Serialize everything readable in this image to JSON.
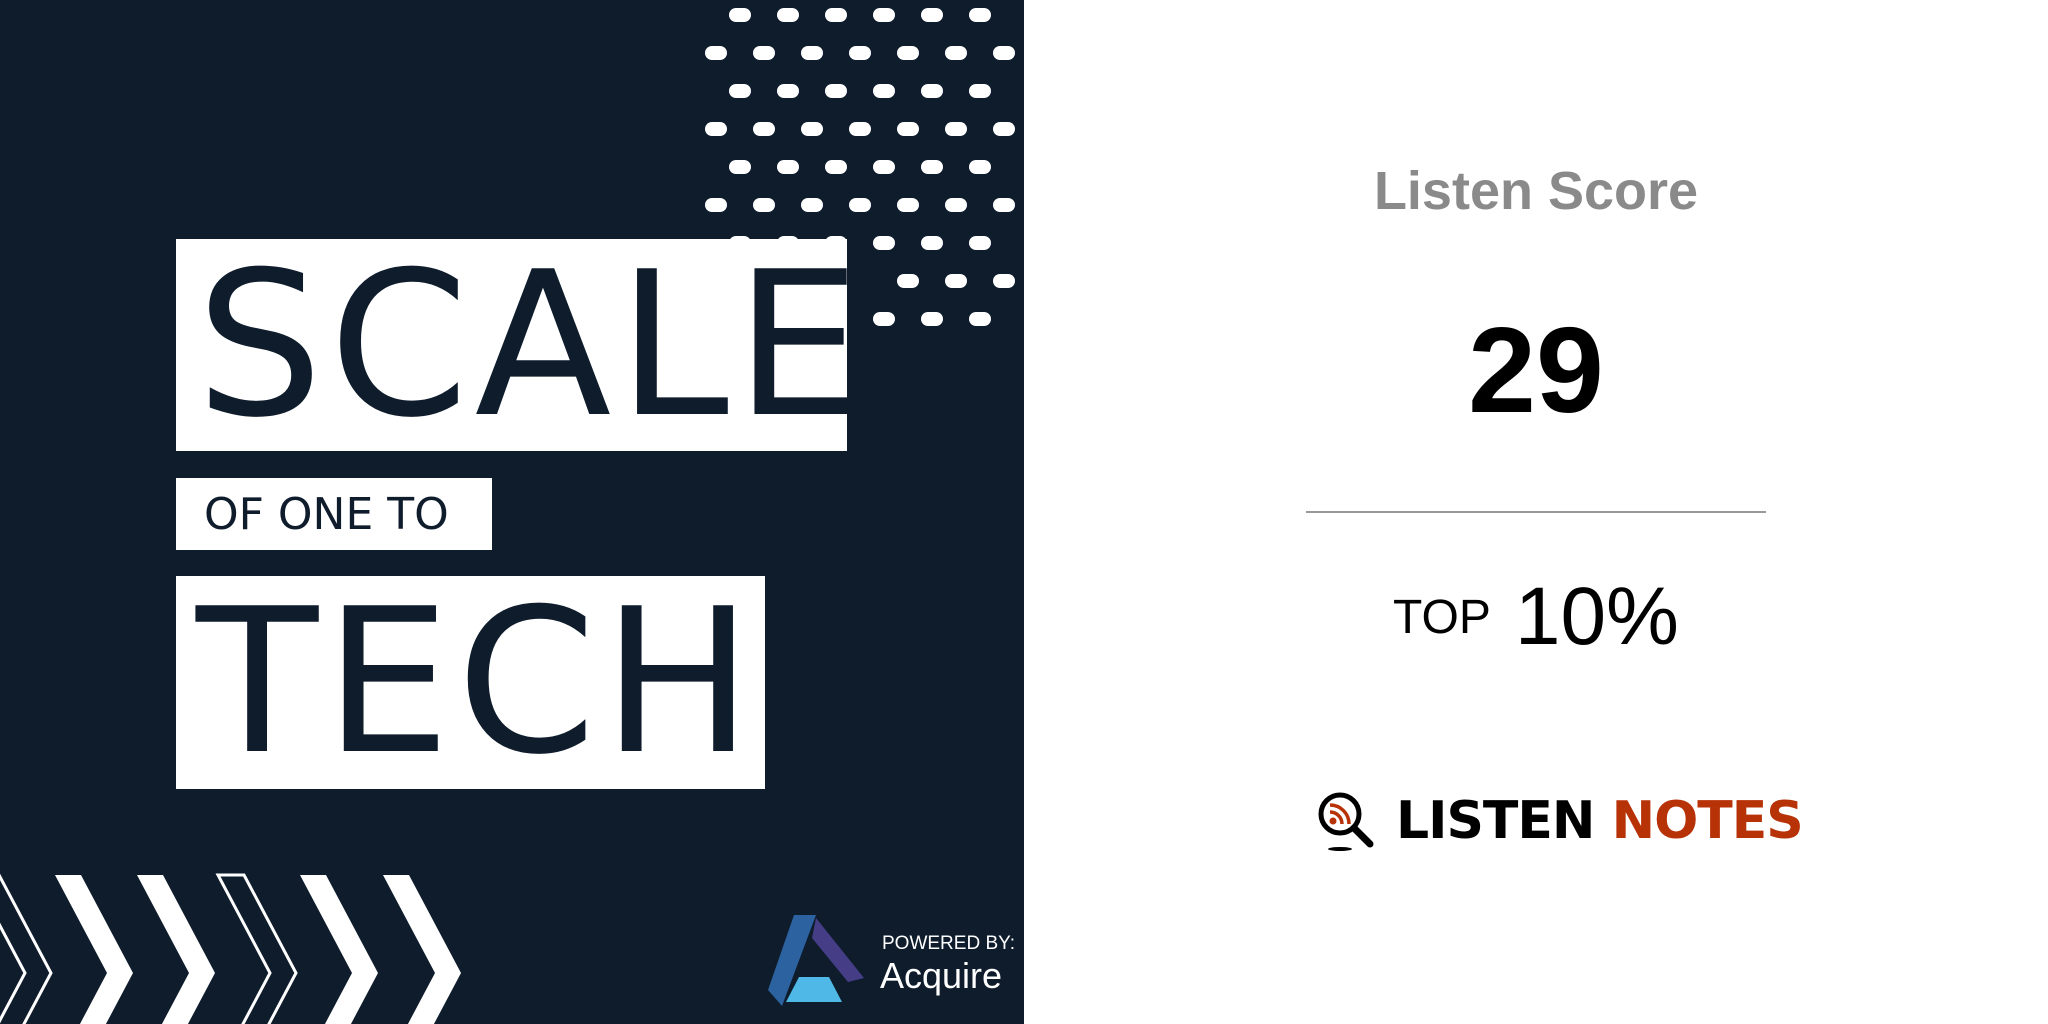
{
  "artwork": {
    "title_line1": "SCALE",
    "title_line2": "OF ONE TO",
    "title_line3": "TECH",
    "powered_by": "POWERED BY:",
    "sponsor": "Acquire",
    "background_color": "#0e1c2c"
  },
  "score_panel": {
    "title": "Listen Score",
    "score": "29",
    "top_label": "TOP",
    "top_value": "10%"
  },
  "brand": {
    "word1": "LISTEN",
    "word2": "NOTES",
    "icon": "magnifier-rss-icon",
    "accent_color": "#b83208"
  }
}
